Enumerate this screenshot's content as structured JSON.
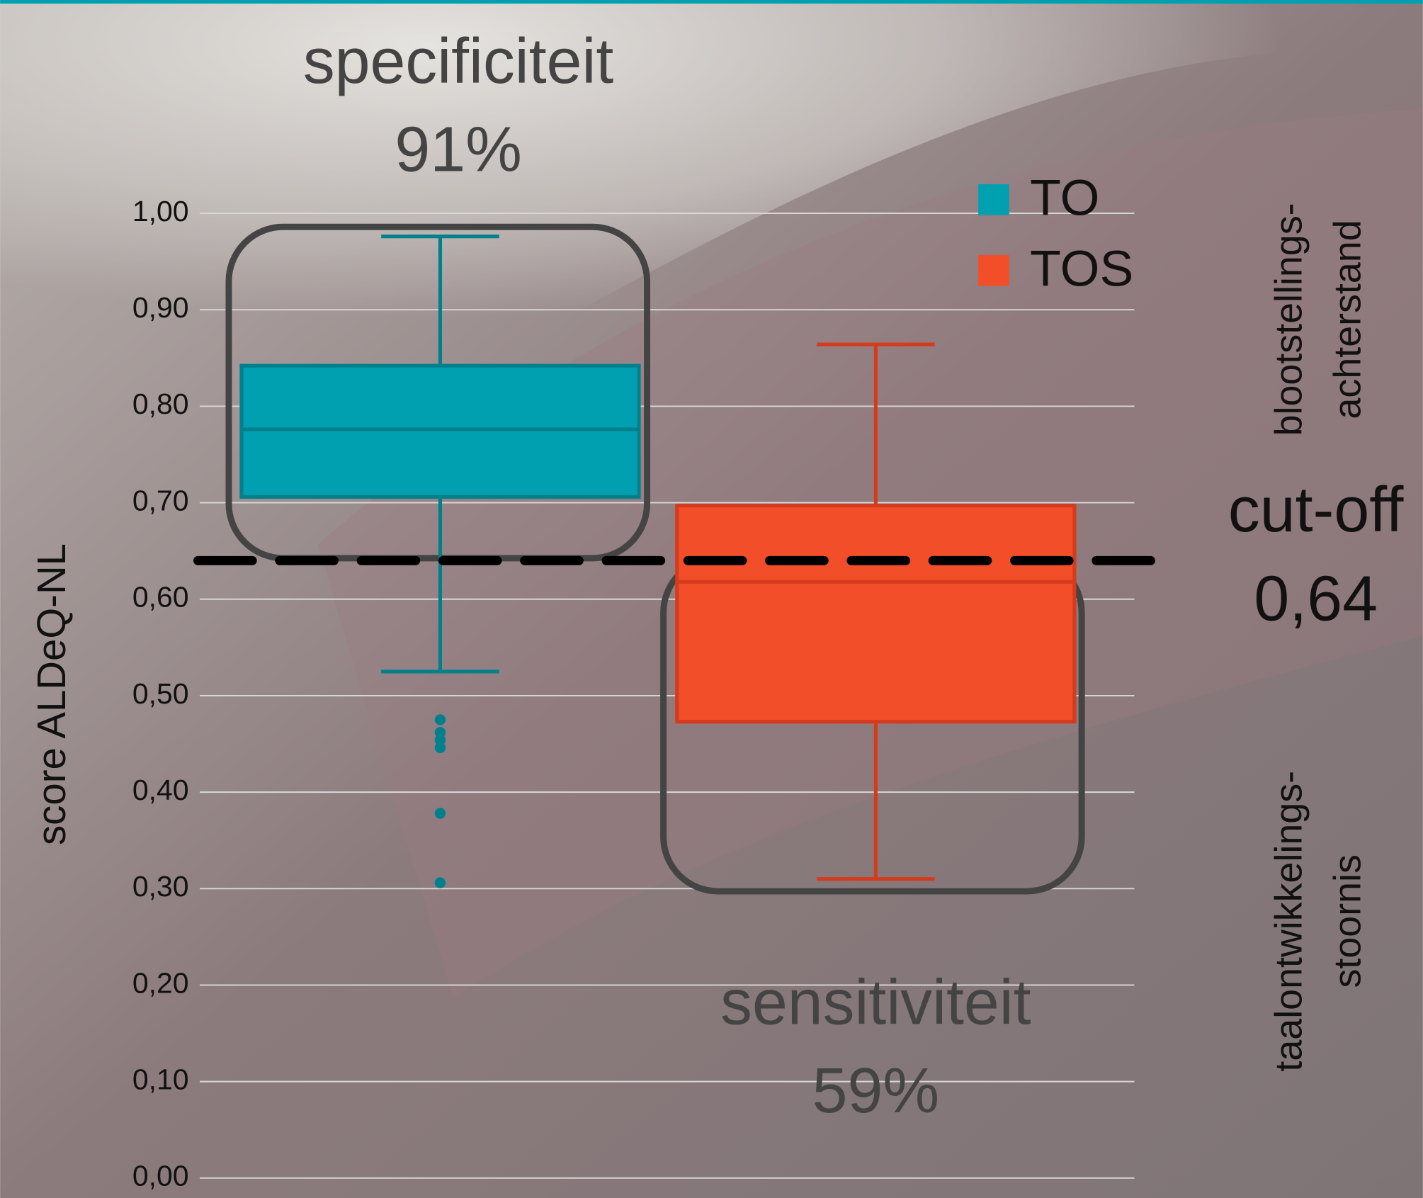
{
  "chart_data": {
    "type": "box",
    "y_label": "score ALDeQ-NL",
    "ylim": [
      0,
      1
    ],
    "yticks": [
      {
        "value": 0,
        "label": "0,00"
      },
      {
        "value": 0.1,
        "label": "0,10"
      },
      {
        "value": 0.2,
        "label": "0,20"
      },
      {
        "value": 0.3,
        "label": "0,30"
      },
      {
        "value": 0.4,
        "label": "0,40"
      },
      {
        "value": 0.5,
        "label": "0,50"
      },
      {
        "value": 0.6,
        "label": "0,60"
      },
      {
        "value": 0.7,
        "label": "0,70"
      },
      {
        "value": 0.8,
        "label": "0,80"
      },
      {
        "value": 0.9,
        "label": "0,90"
      },
      {
        "value": 1,
        "label": "1,00"
      }
    ],
    "grid": true,
    "series": [
      {
        "name": "TO",
        "color": "#00a0b0",
        "edge": "#00808c",
        "whisker_low": 0.525,
        "q1": 0.706,
        "median": 0.776,
        "q3": 0.842,
        "whisker_high": 0.976,
        "outliers": [
          0.475,
          0.462,
          0.454,
          0.446,
          0.378,
          0.306
        ]
      },
      {
        "name": "TOS",
        "color": "#f24e2a",
        "edge": "#d63a1c",
        "whisker_low": 0.31,
        "q1": 0.473,
        "median": 0.618,
        "q3": 0.697,
        "whisker_high": 0.864,
        "outliers": []
      }
    ],
    "cutoff": {
      "value": 0.64,
      "label": "0,64",
      "text": "cut-off"
    },
    "annotations": {
      "specificity": {
        "text": "specificiteit",
        "value": "91%"
      },
      "sensitivity": {
        "text": "sensitiviteit",
        "value": "59%"
      }
    },
    "side_labels": {
      "upper": [
        "blootstellings-",
        "achterstand"
      ],
      "lower": [
        "taalontwikkelings-",
        "stoornis"
      ]
    }
  }
}
